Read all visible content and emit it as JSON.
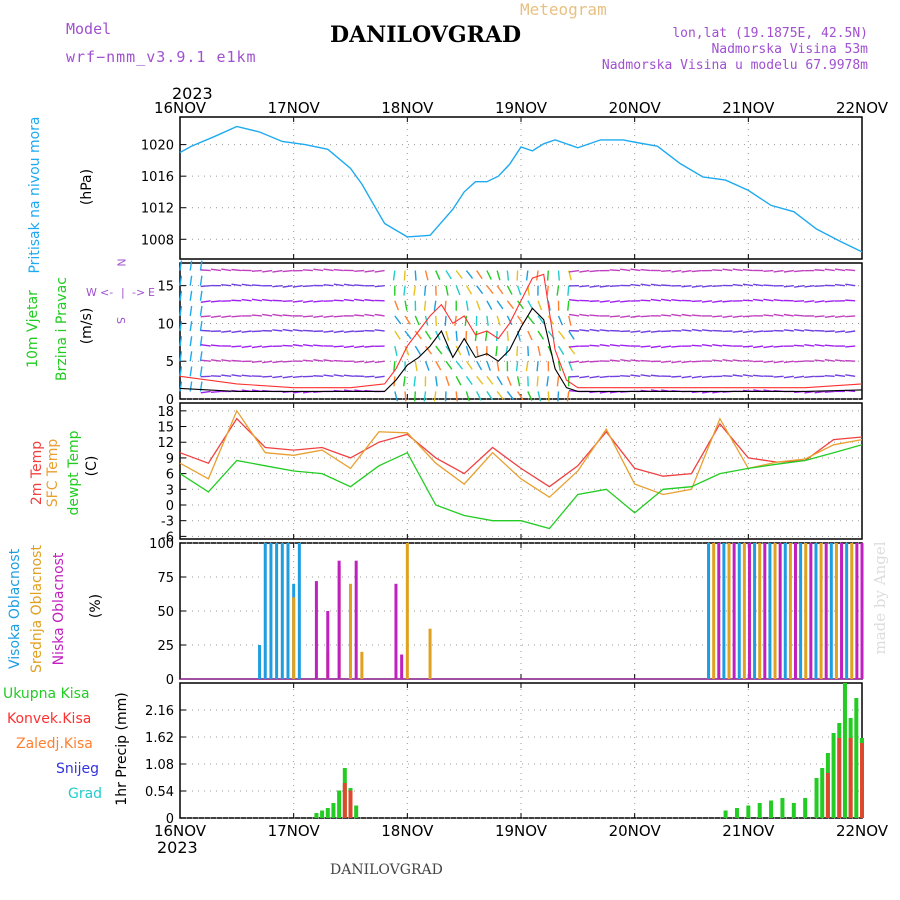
{
  "header": {
    "model_label": "Model",
    "model_name": "wrf−nmm_v3.9.1  e1km",
    "meteogram_label": "Meteogram",
    "location": "DANILOVGRAD",
    "lonlat": "lon,lat (19.1875E, 42.5N)",
    "elevation": "Nadmorska Visina 53m",
    "model_elevation": "Nadmorska Visina u modelu 67.9978m",
    "footer_location": "DANILOVGRAD",
    "watermark": "made by Angel"
  },
  "colors": {
    "pressure": "#1eaaf0",
    "wind_label": "#22cc22",
    "wind_speed": "#000000",
    "wind_gust": "#ff3030",
    "t2m": "#f04040",
    "sfc": "#e8a030",
    "dew": "#22cc22",
    "cloud_high": "#1e9ee0",
    "cloud_mid": "#e0a020",
    "cloud_low": "#c020c0",
    "precip_total": "#22cc22",
    "precip_conv": "#ff3030",
    "precip_strat": "#ff7f30",
    "snow": "#3333dd",
    "grad": "#22cccc",
    "axis_label": "#a050d0"
  },
  "chart_data": [
    {
      "type": "line",
      "title": "Pritisak na nivou mora",
      "ylabel": "(hPa)",
      "ylim": [
        1005.5,
        1023.5
      ],
      "yticks": [
        1008,
        1012,
        1016,
        1020
      ],
      "x": [
        0,
        0.1,
        0.3,
        0.5,
        0.7,
        0.9,
        1.1,
        1.3,
        1.5,
        1.6,
        1.7,
        1.8,
        2.0,
        2.2,
        2.4,
        2.5,
        2.6,
        2.7,
        2.8,
        2.9,
        3.0,
        3.1,
        3.2,
        3.3,
        3.5,
        3.7,
        3.9,
        4.0,
        4.2,
        4.4,
        4.6,
        4.8,
        5.0,
        5.2,
        5.4,
        5.6,
        5.8,
        6.0
      ],
      "values": [
        1019.0,
        1019.8,
        1021.0,
        1022.3,
        1021.6,
        1020.4,
        1020.0,
        1019.4,
        1017.0,
        1015.0,
        1012.5,
        1010.0,
        1008.3,
        1008.5,
        1011.8,
        1014.0,
        1015.3,
        1015.3,
        1016.0,
        1017.5,
        1019.7,
        1019.2,
        1020.1,
        1020.6,
        1019.6,
        1020.6,
        1020.6,
        1020.3,
        1019.8,
        1017.6,
        1015.9,
        1015.5,
        1014.2,
        1012.3,
        1011.5,
        1009.3,
        1007.8,
        1006.4
      ],
      "series_name": "Pritisak na nivou mora"
    },
    {
      "type": "line",
      "title": "10m Vjetar Brzina i Pravac",
      "ylabel": "(m/s)",
      "ylim": [
        0,
        18
      ],
      "yticks": [
        0,
        5,
        10,
        15
      ],
      "side_labels": [
        "N",
        "E",
        "W",
        "S"
      ],
      "side_symbols": [
        "<-",
        "->",
        "|"
      ],
      "speed_x": [
        0,
        0.5,
        1,
        1.5,
        1.8,
        1.9,
        2.0,
        2.1,
        2.2,
        2.3,
        2.4,
        2.5,
        2.6,
        2.7,
        2.8,
        2.9,
        3.0,
        3.1,
        3.2,
        3.3,
        3.4,
        3.5,
        4,
        4.5,
        5,
        5.5,
        6
      ],
      "speed": [
        1.4,
        1.0,
        1.0,
        1.0,
        1.0,
        2.5,
        4.5,
        5.5,
        7.0,
        9.0,
        5.5,
        8.0,
        5.5,
        6.0,
        5.0,
        6.5,
        9.5,
        12.0,
        10.5,
        4.0,
        1.5,
        1.0,
        1.0,
        1.0,
        1.0,
        1.0,
        1.2
      ],
      "gust": [
        3.0,
        2.0,
        1.5,
        1.5,
        2.0,
        4.0,
        7.0,
        9.0,
        11.0,
        12.5,
        10.0,
        11.0,
        8.5,
        9.0,
        8.0,
        10.0,
        13.0,
        16.0,
        16.5,
        6.5,
        2.5,
        1.5,
        1.5,
        1.5,
        1.5,
        1.5,
        2.0
      ]
    },
    {
      "type": "line",
      "title": "2m Temp / SFC Temp / dewpt Temp",
      "ylabel": "(C)",
      "ylim": [
        -6.5,
        19.5
      ],
      "yticks": [
        -6,
        -3,
        0,
        3,
        6,
        9,
        12,
        15,
        18
      ],
      "x": [
        0,
        0.25,
        0.5,
        0.75,
        1.0,
        1.25,
        1.5,
        1.75,
        2.0,
        2.25,
        2.5,
        2.75,
        3.0,
        3.25,
        3.5,
        3.75,
        4.0,
        4.25,
        4.5,
        4.75,
        5.0,
        5.25,
        5.5,
        5.75,
        6.0
      ],
      "series": [
        {
          "name": "2m Temp",
          "values": [
            10,
            8,
            16.5,
            11,
            10.5,
            11,
            9,
            12,
            13.5,
            9,
            6,
            11,
            7,
            3.5,
            7.5,
            14,
            7,
            5.5,
            6,
            15.5,
            9,
            8.2,
            8.5,
            12.5,
            13
          ]
        },
        {
          "name": "SFC Temp",
          "values": [
            8,
            5,
            18,
            10,
            9.5,
            10.5,
            7,
            14,
            13.8,
            8,
            4,
            10,
            5,
            1.5,
            6.5,
            14.5,
            4,
            2,
            3,
            16.5,
            7,
            8.2,
            8.8,
            11.5,
            12.5
          ]
        },
        {
          "name": "dewpt Temp",
          "values": [
            6,
            2.5,
            8.5,
            7.5,
            6.5,
            6,
            3.5,
            7.5,
            10,
            0,
            -2,
            -3,
            -3,
            -4.5,
            2,
            3,
            -1.5,
            3,
            3.5,
            6,
            7,
            7.8,
            8.5,
            10,
            11.5
          ]
        }
      ]
    },
    {
      "type": "bar",
      "title": "Visoka Oblacnost / Srednja Oblacnost / Niska Oblacnost",
      "ylabel": "(%)",
      "ylim": [
        0,
        100
      ],
      "yticks": [
        0,
        25,
        50,
        75,
        100
      ],
      "series": [
        {
          "name": "Visoka Oblacnost",
          "x": [
            0.7,
            0.75,
            0.8,
            0.85,
            0.9,
            0.95,
            1.0,
            1.05
          ],
          "values": [
            25,
            100,
            100,
            100,
            100,
            100,
            70,
            100
          ]
        },
        {
          "name": "Srednja Oblacnost",
          "x": [
            1.0,
            1.3,
            1.4,
            1.5,
            1.6,
            2.0,
            2.2
          ],
          "values": [
            60,
            20,
            83,
            70,
            20,
            100,
            37
          ]
        },
        {
          "name": "Niska Oblacnost",
          "x": [
            1.2,
            1.3,
            1.4,
            1.55,
            1.9,
            1.95
          ],
          "values": [
            72,
            50,
            87,
            87,
            70,
            18
          ]
        }
      ],
      "overcast_from": 4.65
    },
    {
      "type": "bar",
      "title": "1hr Precip",
      "ylabel": "(mm)",
      "ylim": [
        0,
        2.7
      ],
      "yticks": [
        0,
        0.54,
        1.08,
        1.62,
        2.16
      ],
      "legend": [
        "Ukupna Kisa",
        "Konvek.Kisa",
        "Zaledj.Kisa",
        "Snijeg",
        "Grad"
      ],
      "series": [
        {
          "name": "Ukupna Kisa",
          "x": [
            1.2,
            1.25,
            1.3,
            1.35,
            1.4,
            1.45,
            1.5,
            1.55,
            4.8,
            4.9,
            5.0,
            5.1,
            5.2,
            5.3,
            5.4,
            5.5,
            5.6,
            5.65,
            5.7,
            5.75,
            5.8,
            5.85,
            5.9,
            5.95,
            6.0
          ],
          "values": [
            0.1,
            0.15,
            0.2,
            0.3,
            0.55,
            1.0,
            0.6,
            0.25,
            0.15,
            0.2,
            0.25,
            0.3,
            0.35,
            0.4,
            0.3,
            0.4,
            0.8,
            1.0,
            1.3,
            1.7,
            1.9,
            2.7,
            2.0,
            2.4,
            1.6
          ]
        },
        {
          "name": "Konvek.Kisa",
          "x": [
            1.45,
            1.5,
            5.7,
            5.8,
            5.9,
            6.0
          ],
          "values": [
            0.7,
            0.55,
            0.9,
            1.6,
            1.6,
            1.5
          ]
        }
      ]
    }
  ],
  "axes": {
    "year": "2023",
    "x_ticks": [
      "16NOV",
      "17NOV",
      "18NOV",
      "19NOV",
      "20NOV",
      "21NOV",
      "22NOV"
    ]
  }
}
